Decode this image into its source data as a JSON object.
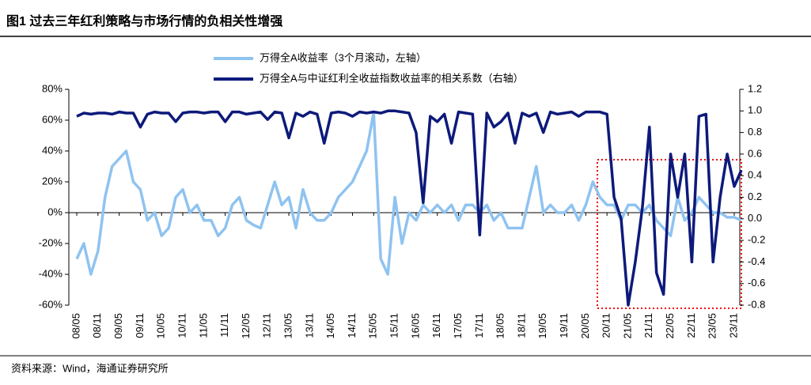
{
  "chart_data": {
    "type": "line",
    "title": "图1  过去三年红利策略与市场行情的负相关性增强",
    "source": "资料来源：Wind，海通证券研究所",
    "categories": [
      "08/05",
      null,
      null,
      "08/11",
      null,
      null,
      "09/05",
      null,
      null,
      "09/11",
      null,
      null,
      "10/05",
      null,
      null,
      "10/11",
      null,
      null,
      "11/05",
      null,
      null,
      "11/11",
      null,
      null,
      "12/05",
      null,
      null,
      "12/11",
      null,
      null,
      "13/05",
      null,
      null,
      "13/11",
      null,
      null,
      "14/05",
      null,
      null,
      "14/11",
      null,
      null,
      "15/05",
      null,
      null,
      "15/11",
      null,
      null,
      "16/05",
      null,
      null,
      "16/11",
      null,
      null,
      "17/05",
      null,
      null,
      "17/11",
      null,
      null,
      "18/05",
      null,
      null,
      "18/11",
      null,
      null,
      "19/05",
      null,
      null,
      "19/11",
      null,
      null,
      "20/05",
      null,
      null,
      "20/11",
      null,
      null,
      "21/05",
      null,
      null,
      "21/11",
      null,
      null,
      "22/05",
      null,
      null,
      "22/11",
      null,
      null,
      "23/05",
      null,
      null,
      "23/11",
      null
    ],
    "series": [
      {
        "name": "万得全A收益率（3个月滚动，左轴）",
        "color": "#8fc3f0",
        "axis": "y",
        "values": [
          -30,
          -20,
          -40,
          -25,
          10,
          30,
          35,
          40,
          20,
          15,
          -5,
          0,
          -15,
          -10,
          10,
          15,
          0,
          5,
          -5,
          -5,
          -15,
          -10,
          5,
          10,
          -5,
          -8,
          -10,
          5,
          20,
          5,
          10,
          -10,
          15,
          0,
          -5,
          -5,
          0,
          10,
          15,
          20,
          30,
          40,
          65,
          -30,
          -40,
          10,
          -20,
          0,
          -5,
          5,
          0,
          5,
          0,
          5,
          -5,
          5,
          5,
          0,
          5,
          -5,
          0,
          -10,
          -10,
          -10,
          10,
          30,
          0,
          5,
          0,
          0,
          5,
          -5,
          5,
          20,
          10,
          5,
          5,
          -5,
          5,
          5,
          0,
          5,
          -5,
          -10,
          -15,
          10,
          -5,
          0,
          10,
          5,
          0,
          0,
          -3,
          -3,
          -5
        ]
      },
      {
        "name": "万得全A与中证红利全收益指数收益率的相关系数（右轴）",
        "color": "#0d1a7a",
        "axis": "y2",
        "values": [
          0.95,
          0.98,
          0.97,
          0.98,
          0.98,
          0.97,
          0.99,
          0.98,
          0.98,
          0.85,
          0.97,
          0.99,
          0.98,
          0.98,
          0.9,
          0.98,
          0.99,
          0.99,
          0.98,
          0.99,
          0.99,
          0.9,
          0.99,
          0.99,
          0.97,
          0.98,
          0.99,
          0.92,
          0.99,
          0.98,
          0.75,
          0.98,
          0.95,
          0.99,
          0.97,
          0.7,
          0.98,
          0.99,
          0.98,
          0.95,
          0.99,
          0.98,
          0.99,
          0.98,
          1.0,
          1.0,
          0.99,
          0.98,
          0.8,
          0.15,
          0.95,
          0.9,
          0.97,
          0.7,
          0.99,
          0.98,
          0.97,
          -0.15,
          0.98,
          0.85,
          0.9,
          0.98,
          0.7,
          0.98,
          0.95,
          0.98,
          0.8,
          0.99,
          0.97,
          0.98,
          0.99,
          0.95,
          0.99,
          0.99,
          0.99,
          0.97,
          0.2,
          0.0,
          -0.8,
          -0.4,
          0.1,
          0.85,
          -0.5,
          -0.7,
          0.6,
          0.2,
          0.6,
          -0.4,
          0.95,
          0.97,
          -0.4,
          0.2,
          0.6,
          0.3,
          0.45
        ]
      }
    ],
    "ylim": [
      -60,
      80
    ],
    "yticks": [
      {
        "value": -60,
        "label": "-60%"
      },
      {
        "value": -40,
        "label": "-40%"
      },
      {
        "value": -20,
        "label": "-20%"
      },
      {
        "value": 0,
        "label": "0%"
      },
      {
        "value": 20,
        "label": "20%"
      },
      {
        "value": 40,
        "label": "40%"
      },
      {
        "value": 60,
        "label": "60%"
      },
      {
        "value": 80,
        "label": "80%"
      }
    ],
    "y2lim": [
      -0.8,
      1.2
    ],
    "y2ticks": [
      -0.8,
      -0.6,
      -0.4,
      -0.2,
      {
        "value": 0,
        "label": "0.0"
      },
      0.2,
      0.4,
      0.6,
      0.8,
      {
        "value": 1,
        "label": "1.0"
      },
      1.2
    ]
  }
}
